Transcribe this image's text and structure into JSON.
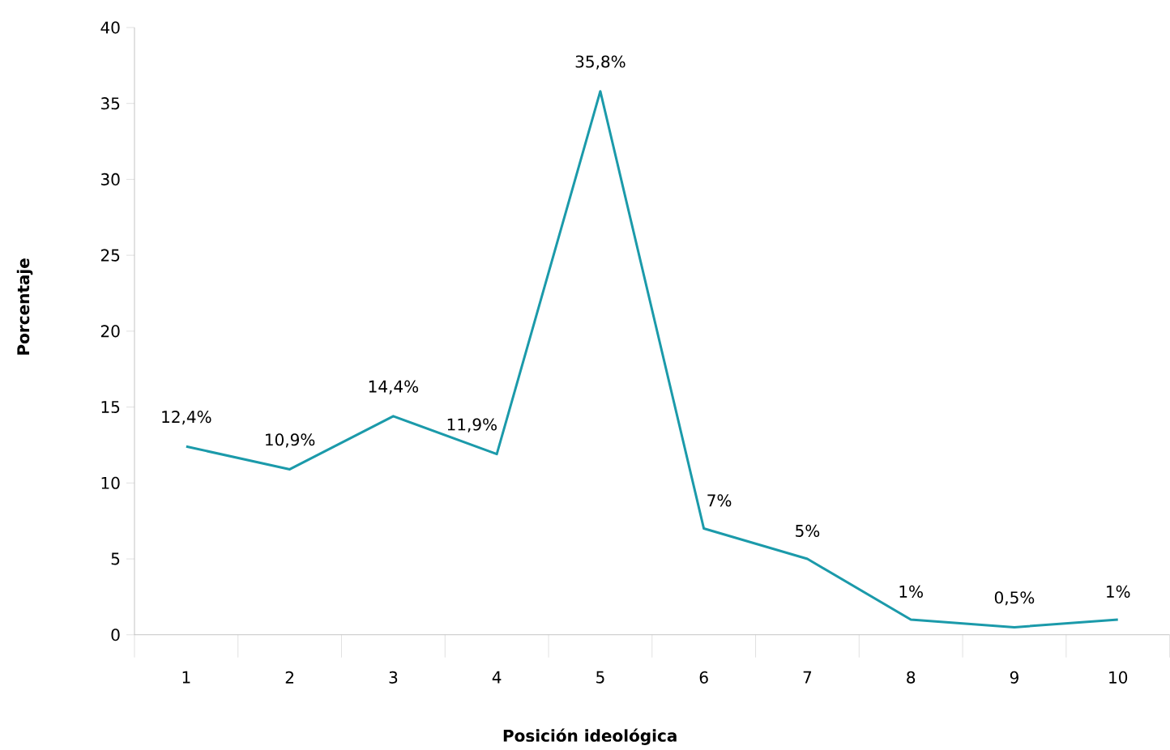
{
  "chart_data": {
    "type": "line",
    "xlabel": "Posición ideológica",
    "ylabel": "Porcentaje",
    "categories": [
      "1",
      "2",
      "3",
      "4",
      "5",
      "6",
      "7",
      "8",
      "9",
      "10"
    ],
    "series": [
      {
        "color": "#1b9aaa",
        "values": [
          12.4,
          10.9,
          14.4,
          11.9,
          35.8,
          7,
          5,
          1,
          0.5,
          1
        ],
        "value_labels": [
          "12,4%",
          "10,9%",
          "14,4%",
          "11,9%",
          "35,8%",
          "7%",
          "5%",
          "1%",
          "0,5%",
          "1%"
        ]
      }
    ],
    "ylim": [
      0,
      40
    ],
    "yticks": [
      0,
      5,
      10,
      15,
      20,
      25,
      30,
      35,
      40
    ],
    "grid": false,
    "marker": "none",
    "line_style": "solid"
  }
}
